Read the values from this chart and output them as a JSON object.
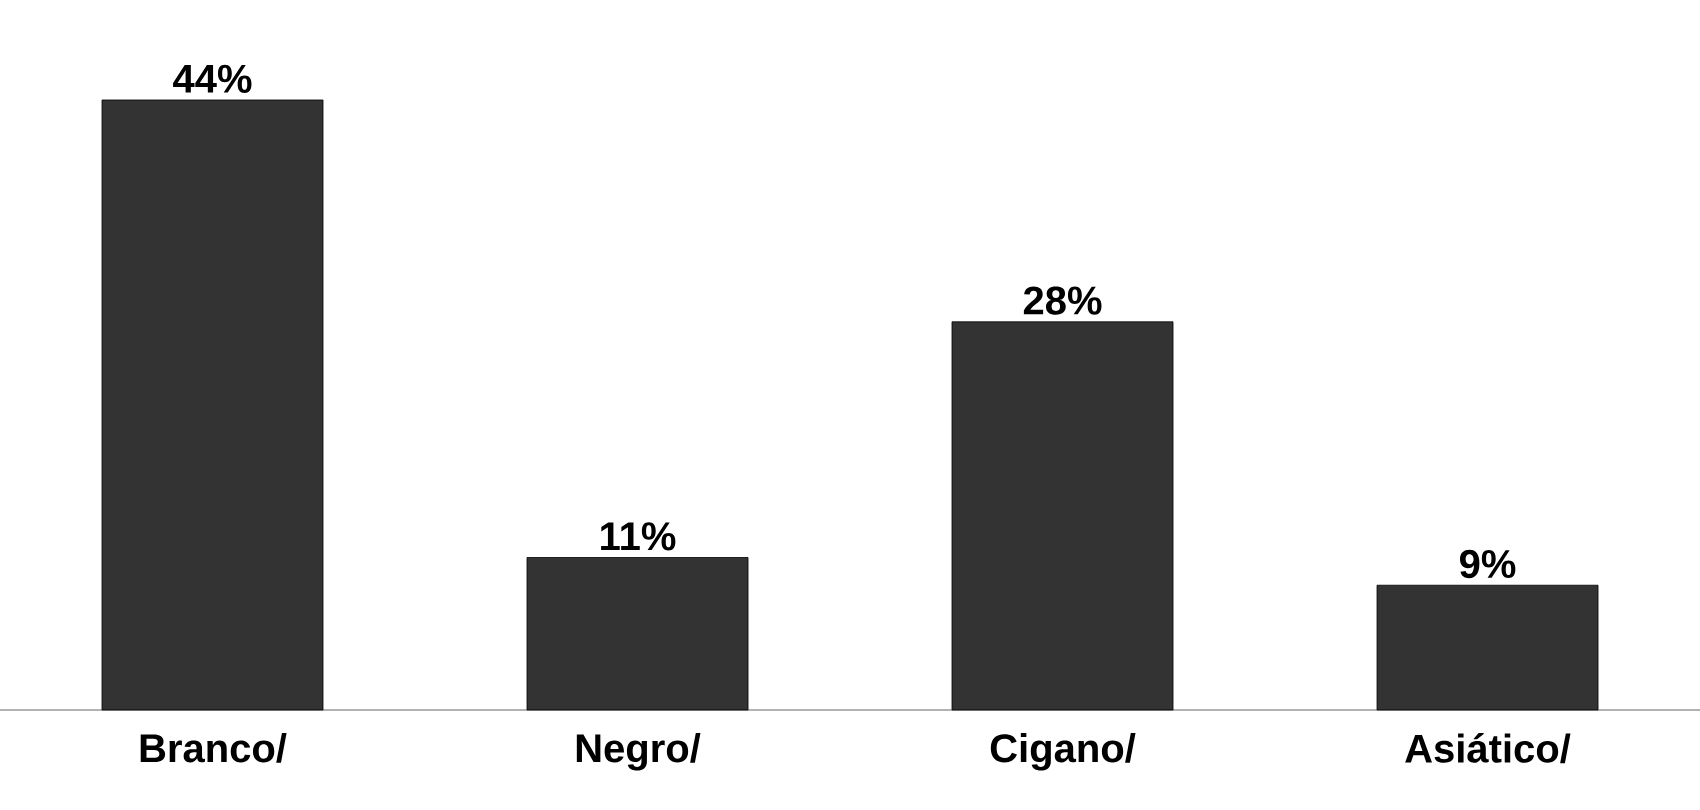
{
  "chart_data": {
    "type": "bar",
    "categories": [
      "Branco/",
      "Negro/",
      "Cigano/",
      "Asiático/"
    ],
    "values": [
      44,
      11,
      28,
      9
    ],
    "color": "#333333",
    "value_labels": [
      "44%",
      "11%",
      "28%",
      "9%"
    ]
  }
}
